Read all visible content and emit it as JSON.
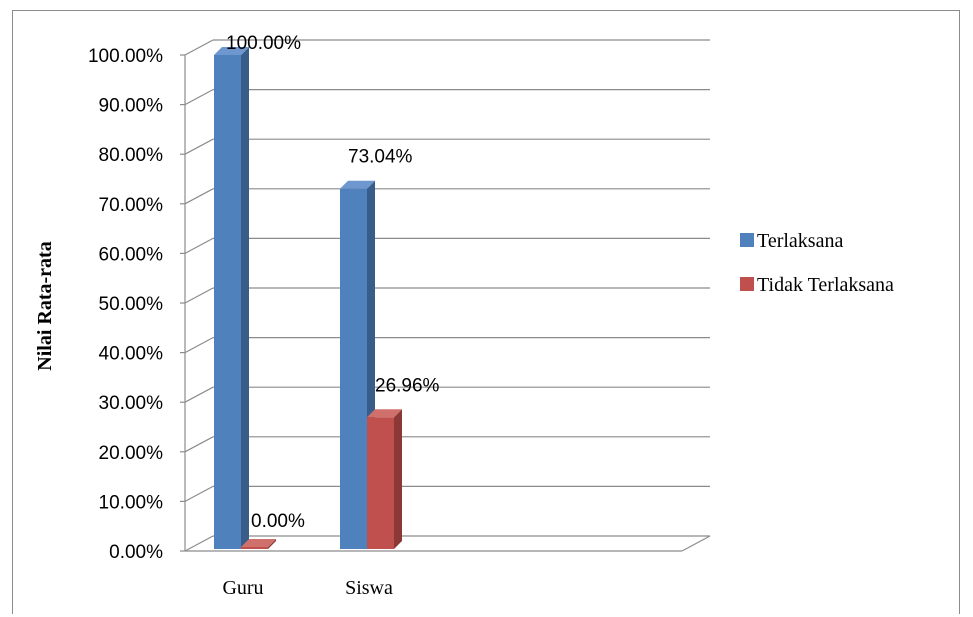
{
  "chart_data": {
    "type": "bar",
    "categories": [
      "Guru",
      "Siswa"
    ],
    "series": [
      {
        "name": "Terlaksana",
        "values": [
          100.0,
          73.04
        ],
        "labels": [
          "100.00%",
          "73.04%"
        ],
        "color": "#4f81bd",
        "side_color": "#385d8a",
        "top_color": "#6e97cf"
      },
      {
        "name": "Tidak Terlaksana",
        "values": [
          0.0,
          26.96
        ],
        "labels": [
          "0.00%",
          "26.96%"
        ],
        "color": "#c0504d",
        "side_color": "#8c3836",
        "top_color": "#d0706d"
      }
    ],
    "ylabel": "Nilai Rata-rata",
    "xlabel": "",
    "ylim": [
      0,
      100
    ],
    "yticks": [
      "0.00%",
      "10.00%",
      "20.00%",
      "30.00%",
      "40.00%",
      "50.00%",
      "60.00%",
      "70.00%",
      "80.00%",
      "90.00%",
      "100.00%"
    ],
    "grid": true,
    "legend_position": "right",
    "style": "3d-clustered-column"
  }
}
